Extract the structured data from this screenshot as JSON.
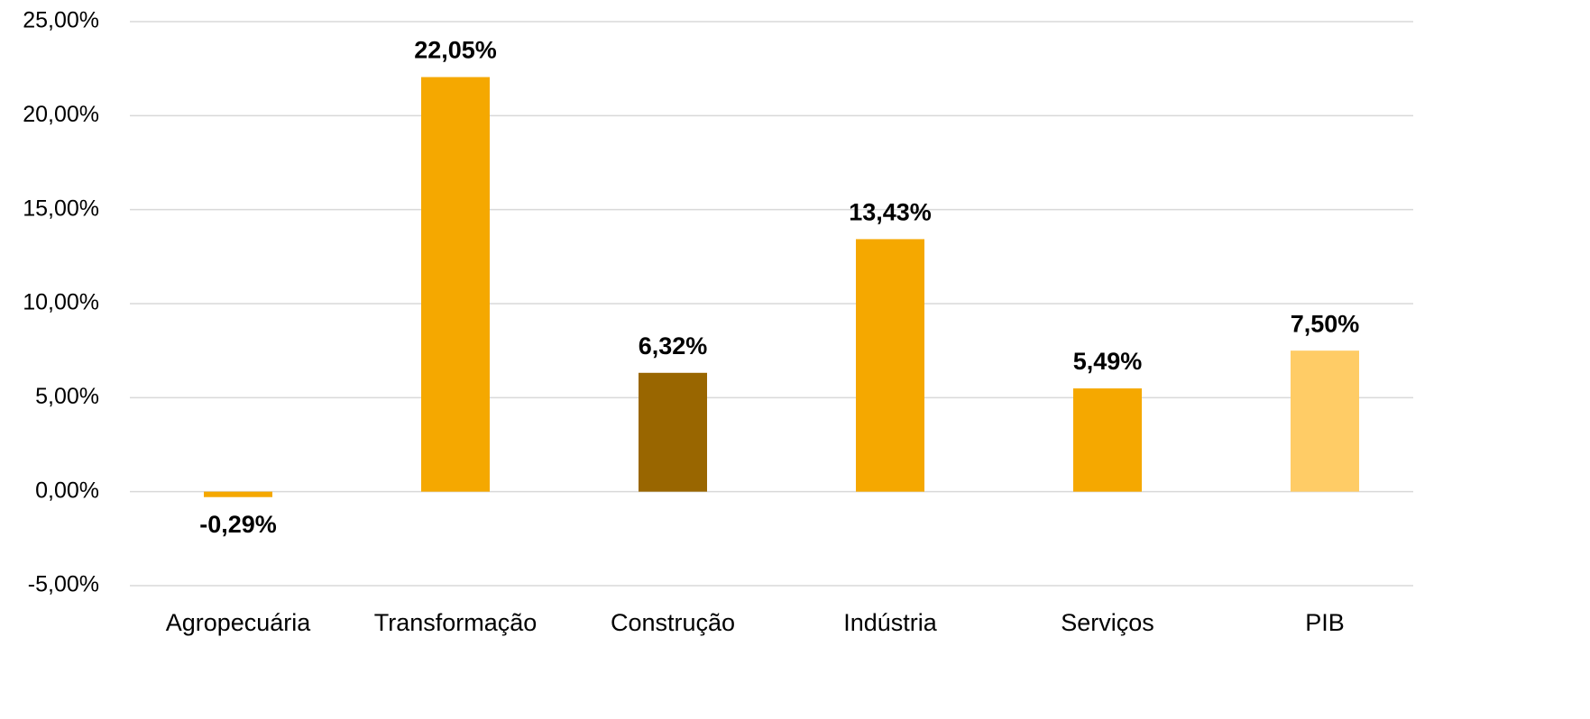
{
  "chart_data": {
    "type": "bar",
    "categories": [
      "Agropecuária",
      "Transformação",
      "Construção",
      "Indústria",
      "Serviços",
      "PIB"
    ],
    "values": [
      -0.29,
      22.05,
      6.32,
      13.43,
      5.49,
      7.5
    ],
    "value_labels": [
      "-0,29%",
      "22,05%",
      "6,32%",
      "13,43%",
      "5,49%",
      "7,50%"
    ],
    "colors": [
      "#f5a800",
      "#f5a800",
      "#996600",
      "#f5a800",
      "#f5a800",
      "#ffcc66"
    ],
    "ylim": [
      -5,
      25
    ],
    "yticks": [
      {
        "value": -5,
        "label": "-5,00%"
      },
      {
        "value": 0,
        "label": "0,00%"
      },
      {
        "value": 5,
        "label": "5,00%"
      },
      {
        "value": 10,
        "label": "10,00%"
      },
      {
        "value": 15,
        "label": "15,00%"
      },
      {
        "value": 20,
        "label": "20,00%"
      },
      {
        "value": 25,
        "label": "25,00%"
      }
    ],
    "grid": true
  }
}
